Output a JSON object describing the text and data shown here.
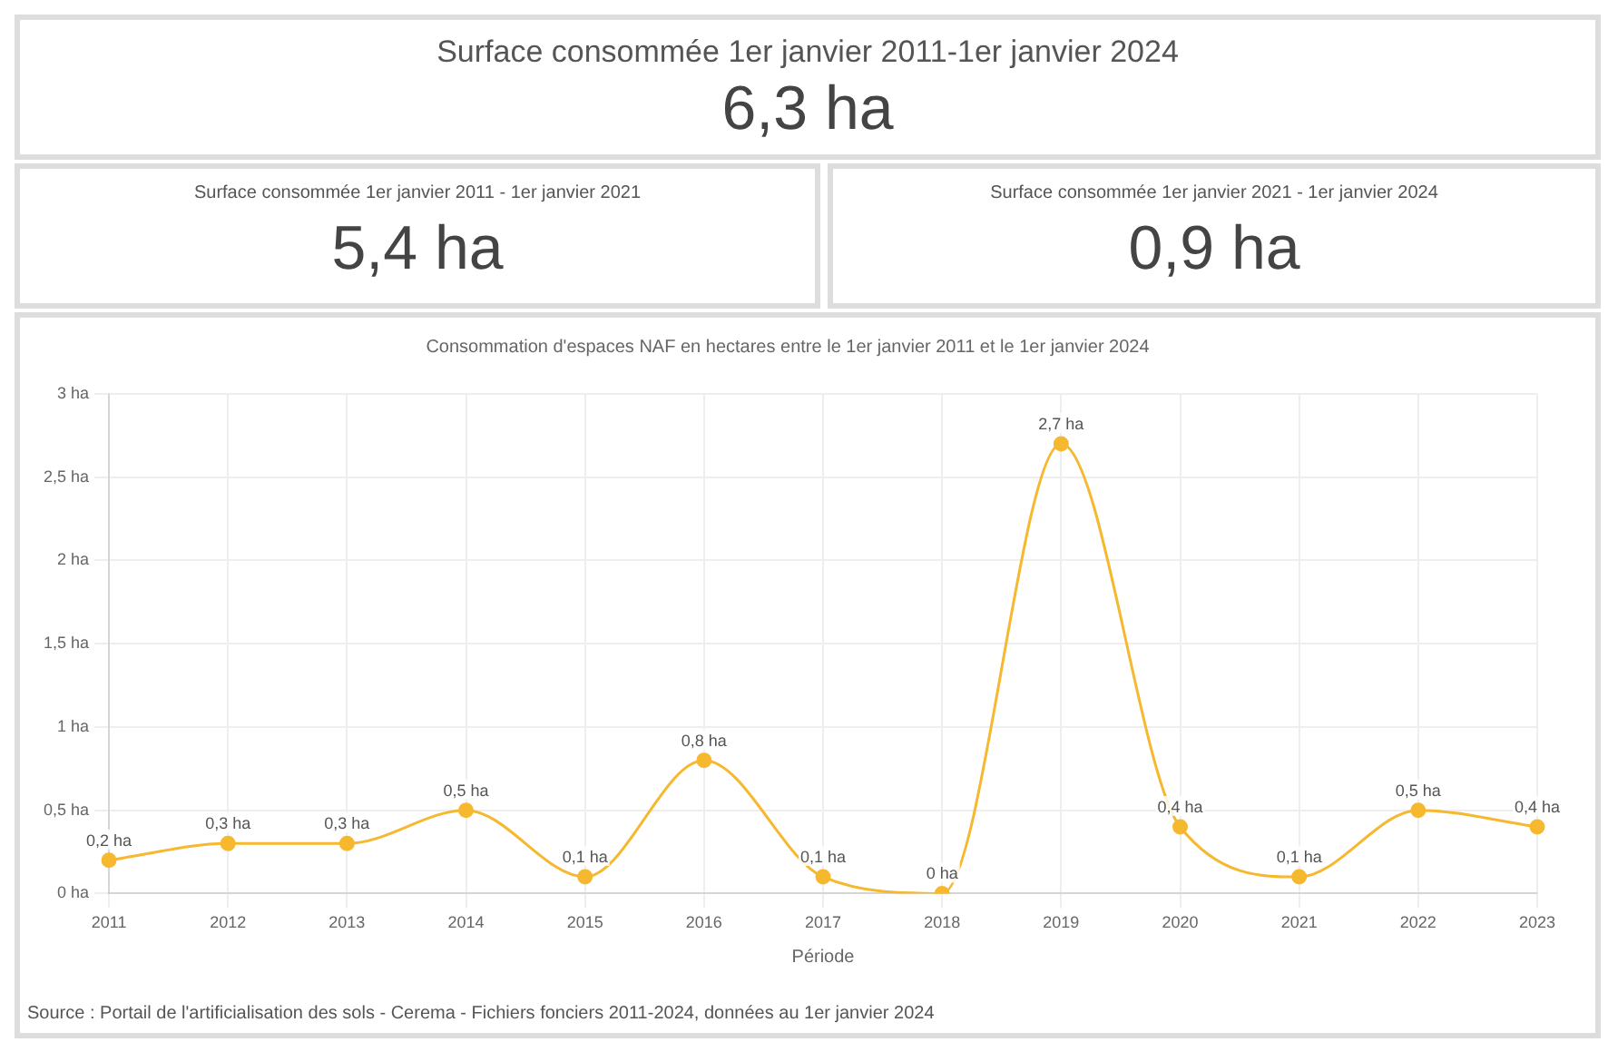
{
  "chart_data": [
    {
      "type": "other",
      "title": "Surface consommée 1er janvier 2011-1er janvier 2024",
      "annotations": [
        "6,3 ha"
      ]
    },
    {
      "type": "other",
      "title": "Surface consommée 1er janvier 2011 - 1er janvier 2021",
      "annotations": [
        "5,4 ha"
      ]
    },
    {
      "type": "other",
      "title": "Surface consommée 1er janvier 2021 - 1er janvier 2024",
      "annotations": [
        "0,9 ha"
      ]
    },
    {
      "type": "line",
      "title": "Consommation d'espaces NAF en hectares entre le 1er janvier 2011 et le 1er janvier 2024",
      "xlabel": "Période",
      "categories": [
        "2011",
        "2012",
        "2013",
        "2014",
        "2015",
        "2016",
        "2017",
        "2018",
        "2019",
        "2020",
        "2021",
        "2022",
        "2023"
      ],
      "values": [
        0.2,
        0.3,
        0.3,
        0.5,
        0.1,
        0.8,
        0.1,
        0,
        2.7,
        0.4,
        0.1,
        0.5,
        0.4
      ],
      "value_labels": [
        "0,2 ha",
        "0,3 ha",
        "0,3 ha",
        "0,5 ha",
        "0,1 ha",
        "0,8 ha",
        "0,1 ha",
        "0 ha",
        "2,7 ha",
        "0,4 ha",
        "0,1 ha",
        "0,5 ha",
        "0,4 ha"
      ],
      "color": "#f5b82e",
      "marker": "circle",
      "grid": true,
      "legend": false,
      "ylim": [
        0,
        3
      ],
      "yticks": [
        {
          "value": 0,
          "label": "0 ha"
        },
        {
          "value": 0.5,
          "label": "0,5 ha"
        },
        {
          "value": 1,
          "label": "1 ha"
        },
        {
          "value": 1.5,
          "label": "1,5 ha"
        },
        {
          "value": 2,
          "label": "2 ha"
        },
        {
          "value": 2.5,
          "label": "2,5 ha"
        },
        {
          "value": 3,
          "label": "3 ha"
        }
      ],
      "annotations": [
        "Source : Portail de l'artificialisation des sols - Cerema - Fichiers fonciers 2011-2024, données au 1er janvier 2024"
      ]
    }
  ]
}
